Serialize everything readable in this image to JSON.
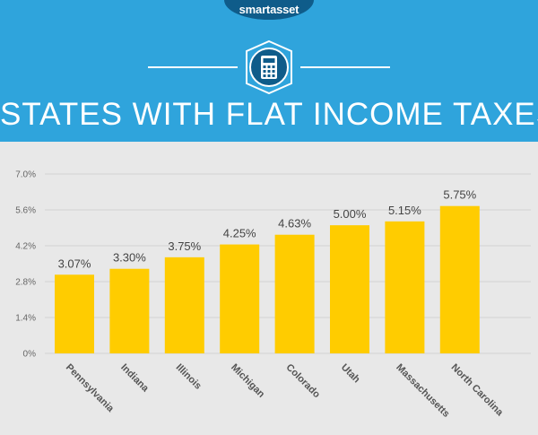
{
  "brand": "smartasset",
  "colors": {
    "header": "#2fa4dc",
    "bar": "#ffcc00",
    "background": "#e8e8e8",
    "brand_tab": "#0f5c8a"
  },
  "icon": "calculator-icon",
  "chart_data": {
    "type": "bar",
    "title": "STATES WITH FLAT INCOME TAXES",
    "xlabel": "",
    "ylabel": "",
    "categories": [
      "Pennsylvania",
      "Indiana",
      "Illinois",
      "Michigan",
      "Colorado",
      "Utah",
      "Massachusetts",
      "North Carolina"
    ],
    "values": [
      3.07,
      3.3,
      3.75,
      4.25,
      4.63,
      5.0,
      5.15,
      5.75
    ],
    "value_labels": [
      "3.07%",
      "3.30%",
      "3.75%",
      "4.25%",
      "4.63%",
      "5.00%",
      "5.15%",
      "5.75%"
    ],
    "yticks": [
      0,
      1.4,
      2.8,
      4.2,
      5.6,
      7.0
    ],
    "ytick_labels": [
      "0%",
      "1.4%",
      "2.8%",
      "4.2%",
      "5.6%",
      "7.0%"
    ],
    "ylim": [
      0,
      7.0
    ],
    "grid": true,
    "legend": "none"
  }
}
